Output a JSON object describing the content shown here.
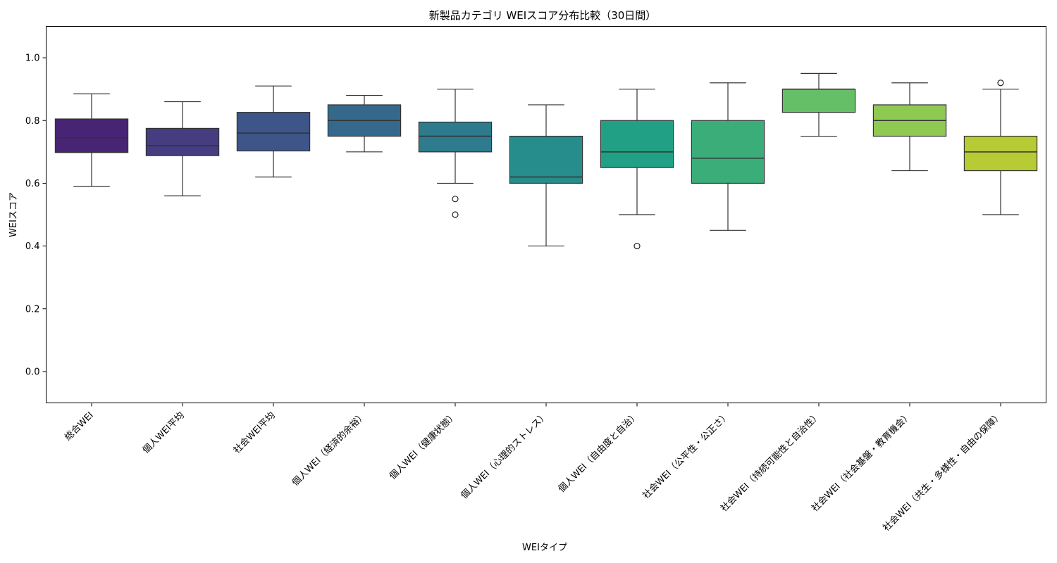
{
  "chart_data": {
    "type": "box",
    "title": "新製品カテゴリ WEIスコア分布比較（30日間）",
    "xlabel": "WEIタイプ",
    "ylabel": "WEIスコア",
    "ylim": [
      -0.1,
      1.1
    ],
    "yticks": [
      "0.0",
      "0.2",
      "0.4",
      "0.6",
      "0.8",
      "1.0"
    ],
    "grid": false,
    "categories": [
      "総合WEI",
      "個人WEI平均",
      "社会WEI平均",
      "個人WEI（経済的余裕）",
      "個人WEI（健康状態）",
      "個人WEI（心理的ストレス）",
      "個人WEI（自由度と自治）",
      "社会WEI（公平性・公正さ）",
      "社会WEI（持続可能性と自治性）",
      "社会WEI（社会基盤・教育機会）",
      "社会WEI（共生・多様性・自由の保障）"
    ],
    "boxes": [
      {
        "whisker_low": 0.59,
        "q1": 0.698,
        "median": 0.745,
        "q3": 0.805,
        "whisker_high": 0.885,
        "outliers": [],
        "color": "#482475"
      },
      {
        "whisker_low": 0.56,
        "q1": 0.688,
        "median": 0.72,
        "q3": 0.775,
        "whisker_high": 0.86,
        "outliers": [],
        "color": "#453d7f"
      },
      {
        "whisker_low": 0.62,
        "q1": 0.703,
        "median": 0.76,
        "q3": 0.826,
        "whisker_high": 0.91,
        "outliers": [],
        "color": "#3d5589"
      },
      {
        "whisker_low": 0.7,
        "q1": 0.75,
        "median": 0.8,
        "q3": 0.85,
        "whisker_high": 0.88,
        "outliers": [],
        "color": "#34698c"
      },
      {
        "whisker_low": 0.6,
        "q1": 0.7,
        "median": 0.75,
        "q3": 0.795,
        "whisker_high": 0.9,
        "outliers": [
          0.55,
          0.5
        ],
        "color": "#2d7b8d"
      },
      {
        "whisker_low": 0.4,
        "q1": 0.6,
        "median": 0.62,
        "q3": 0.75,
        "whisker_high": 0.85,
        "outliers": [],
        "color": "#268d8c"
      },
      {
        "whisker_low": 0.5,
        "q1": 0.65,
        "median": 0.7,
        "q3": 0.8,
        "whisker_high": 0.9,
        "outliers": [
          0.4
        ],
        "color": "#21a085"
      },
      {
        "whisker_low": 0.45,
        "q1": 0.6,
        "median": 0.68,
        "q3": 0.8,
        "whisker_high": 0.92,
        "outliers": [],
        "color": "#3aad79"
      },
      {
        "whisker_low": 0.75,
        "q1": 0.826,
        "median": 0.9,
        "q3": 0.9,
        "whisker_high": 0.95,
        "outliers": [],
        "color": "#65bf67"
      },
      {
        "whisker_low": 0.64,
        "q1": 0.75,
        "median": 0.8,
        "q3": 0.85,
        "whisker_high": 0.92,
        "outliers": [],
        "color": "#8ec951"
      },
      {
        "whisker_low": 0.5,
        "q1": 0.64,
        "median": 0.7,
        "q3": 0.75,
        "whisker_high": 0.9,
        "outliers": [
          0.92
        ],
        "color": "#b6cb34"
      }
    ]
  }
}
